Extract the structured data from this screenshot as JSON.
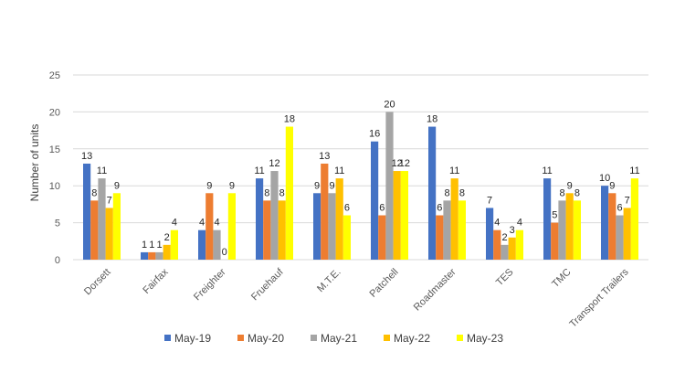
{
  "chart_data": {
    "type": "bar",
    "title": "",
    "xlabel": "",
    "ylabel": "Number of units",
    "ylim": [
      0,
      25
    ],
    "yticks": [
      0,
      5,
      10,
      15,
      20,
      25
    ],
    "grid": true,
    "legend_placement": "bottom",
    "categories": [
      "Dorsett",
      "Fairfax",
      "Freighter",
      "Fruehauf",
      "M.T.E.",
      "Patchell",
      "Roadmaster",
      "TES",
      "TMC",
      "Transport Trailers"
    ],
    "series": [
      {
        "name": "May-19",
        "color": "#4472C4",
        "values": [
          13,
          1,
          4,
          11,
          9,
          16,
          18,
          7,
          11,
          10
        ]
      },
      {
        "name": "May-20",
        "color": "#ED7D31",
        "values": [
          8,
          1,
          9,
          8,
          13,
          6,
          6,
          4,
          5,
          9
        ]
      },
      {
        "name": "May-21",
        "color": "#A5A5A5",
        "values": [
          11,
          1,
          4,
          12,
          9,
          20,
          8,
          2,
          8,
          6
        ]
      },
      {
        "name": "May-22",
        "color": "#FFC000",
        "values": [
          7,
          2,
          0,
          8,
          11,
          12,
          11,
          3,
          9,
          7
        ]
      },
      {
        "name": "May-23",
        "color": "#FFFF00",
        "values": [
          9,
          4,
          9,
          18,
          6,
          12,
          8,
          4,
          8,
          11
        ]
      }
    ]
  }
}
